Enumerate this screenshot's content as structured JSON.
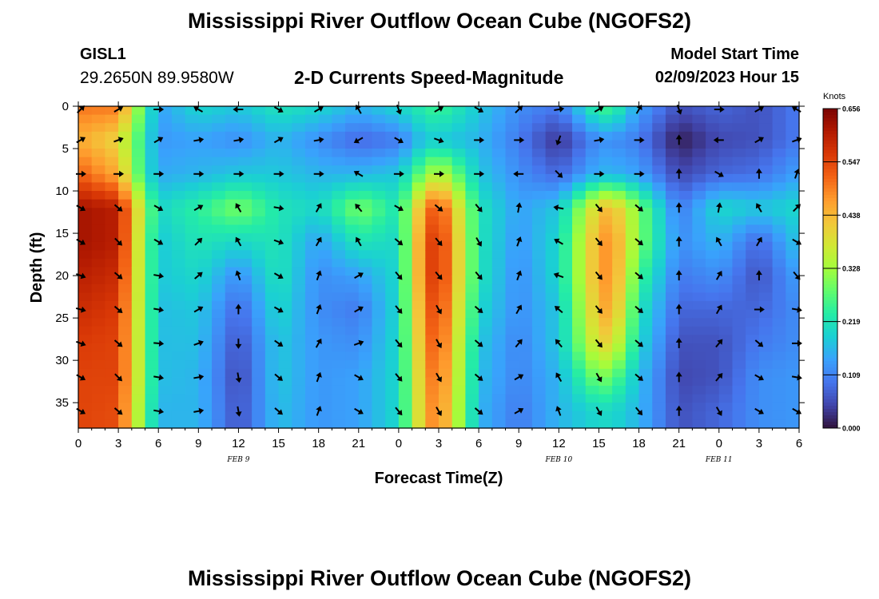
{
  "header": {
    "title": "Mississippi River Outflow Ocean Cube (NGOFS2)",
    "station": "GISL1",
    "coordinates": "29.2650N  89.9580W",
    "product": "2-D Currents Speed-Magnitude",
    "model_start_label": "Model Start Time",
    "model_start_value": "02/09/2023 Hour 15"
  },
  "footer": {
    "title": "Mississippi River Outflow Ocean Cube (NGOFS2)"
  },
  "chart_data": {
    "type": "heatmap",
    "xlabel": "Forecast Time(Z)",
    "ylabel": "Depth (ft)",
    "x_tick_labels": [
      "0",
      "3",
      "6",
      "9",
      "12",
      "15",
      "18",
      "21",
      "0",
      "3",
      "6",
      "9",
      "12",
      "15",
      "18",
      "21",
      "0",
      "3",
      "6"
    ],
    "x_range_hours": [
      0,
      54
    ],
    "date_labels": [
      {
        "label": "FEB 9",
        "hour": 12
      },
      {
        "label": "FEB 10",
        "hour": 36
      },
      {
        "label": "FEB 11",
        "hour": 48
      }
    ],
    "y_ticks": [
      0,
      5,
      10,
      15,
      20,
      25,
      30,
      35
    ],
    "y_range": [
      0,
      38
    ],
    "y_inverted": true,
    "colorbar": {
      "unit": "Knots",
      "ticks": [
        "0.656",
        "0.547",
        "0.438",
        "0.328",
        "0.219",
        "0.109",
        "0.000"
      ],
      "min": 0,
      "max": 0.656,
      "colors": [
        "#30123b",
        "#4145ab",
        "#4675ed",
        "#39a2fc",
        "#1bcfd4",
        "#24eca6",
        "#61fc6c",
        "#a4fc3b",
        "#d1e834",
        "#f3c63a",
        "#fe9b2d",
        "#f36315",
        "#d93806",
        "#b11901",
        "#7a0402"
      ]
    },
    "arrow_times": [
      0,
      3,
      6,
      9,
      12,
      15,
      18,
      21,
      24,
      27,
      30,
      33,
      36,
      39,
      42,
      45,
      48,
      51,
      54
    ],
    "arrow_depths": [
      0,
      4,
      8,
      12,
      16,
      20,
      24,
      28,
      32,
      36
    ],
    "speed_profiles": [
      {
        "t": 0,
        "speeds": [
          0.5,
          0.45,
          0.52,
          0.62,
          0.62,
          0.6,
          0.58,
          0.56,
          0.55,
          0.55
        ]
      },
      {
        "t": 3,
        "speeds": [
          0.5,
          0.4,
          0.45,
          0.6,
          0.6,
          0.58,
          0.56,
          0.55,
          0.55,
          0.54
        ]
      },
      {
        "t": 5,
        "speeds": [
          0.25,
          0.22,
          0.22,
          0.32,
          0.3,
          0.3,
          0.3,
          0.3,
          0.3,
          0.28
        ]
      },
      {
        "t": 6,
        "speeds": [
          0.14,
          0.13,
          0.15,
          0.2,
          0.18,
          0.18,
          0.17,
          0.17,
          0.17,
          0.16
        ]
      },
      {
        "t": 9,
        "speeds": [
          0.2,
          0.14,
          0.16,
          0.24,
          0.22,
          0.2,
          0.18,
          0.17,
          0.16,
          0.16
        ]
      },
      {
        "t": 12,
        "speeds": [
          0.18,
          0.12,
          0.18,
          0.3,
          0.2,
          0.12,
          0.08,
          0.06,
          0.05,
          0.06
        ]
      },
      {
        "t": 15,
        "speeds": [
          0.22,
          0.16,
          0.18,
          0.22,
          0.22,
          0.22,
          0.2,
          0.18,
          0.18,
          0.17
        ]
      },
      {
        "t": 18,
        "speeds": [
          0.2,
          0.12,
          0.16,
          0.2,
          0.14,
          0.12,
          0.12,
          0.13,
          0.13,
          0.13
        ]
      },
      {
        "t": 21,
        "speeds": [
          0.16,
          0.08,
          0.16,
          0.3,
          0.22,
          0.14,
          0.1,
          0.12,
          0.14,
          0.14
        ]
      },
      {
        "t": 24,
        "speeds": [
          0.2,
          0.1,
          0.18,
          0.22,
          0.2,
          0.2,
          0.2,
          0.2,
          0.2,
          0.2
        ]
      },
      {
        "t": 26,
        "speeds": [
          0.24,
          0.18,
          0.3,
          0.48,
          0.52,
          0.52,
          0.5,
          0.48,
          0.46,
          0.45
        ]
      },
      {
        "t": 27,
        "speeds": [
          0.26,
          0.18,
          0.36,
          0.55,
          0.58,
          0.58,
          0.56,
          0.54,
          0.52,
          0.5
        ]
      },
      {
        "t": 30,
        "speeds": [
          0.18,
          0.16,
          0.18,
          0.22,
          0.22,
          0.22,
          0.2,
          0.18,
          0.17,
          0.16
        ]
      },
      {
        "t": 33,
        "speeds": [
          0.12,
          0.1,
          0.12,
          0.14,
          0.13,
          0.12,
          0.12,
          0.11,
          0.11,
          0.1
        ]
      },
      {
        "t": 36,
        "speeds": [
          0.1,
          0.03,
          0.08,
          0.18,
          0.2,
          0.2,
          0.18,
          0.18,
          0.16,
          0.16
        ]
      },
      {
        "t": 39,
        "speeds": [
          0.26,
          0.12,
          0.16,
          0.42,
          0.46,
          0.46,
          0.44,
          0.4,
          0.3,
          0.2
        ]
      },
      {
        "t": 40,
        "speeds": [
          0.26,
          0.12,
          0.16,
          0.44,
          0.48,
          0.48,
          0.46,
          0.4,
          0.28,
          0.2
        ]
      },
      {
        "t": 42,
        "speeds": [
          0.14,
          0.1,
          0.14,
          0.3,
          0.3,
          0.26,
          0.22,
          0.2,
          0.17,
          0.16
        ]
      },
      {
        "t": 45,
        "speeds": [
          0.06,
          0.01,
          0.05,
          0.1,
          0.12,
          0.1,
          0.08,
          0.06,
          0.05,
          0.06
        ]
      },
      {
        "t": 48,
        "speeds": [
          0.08,
          0.05,
          0.08,
          0.2,
          0.16,
          0.12,
          0.08,
          0.06,
          0.06,
          0.08
        ]
      },
      {
        "t": 51,
        "speeds": [
          0.06,
          0.06,
          0.09,
          0.18,
          0.08,
          0.06,
          0.08,
          0.1,
          0.12,
          0.12
        ]
      },
      {
        "t": 54,
        "speeds": [
          0.1,
          0.1,
          0.14,
          0.2,
          0.18,
          0.14,
          0.12,
          0.12,
          0.13,
          0.13
        ]
      }
    ],
    "direction_columns_deg": [
      {
        "t": 0,
        "dirs": [
          45,
          60,
          90,
          120,
          120,
          110,
          105,
          110,
          120,
          120
        ]
      },
      {
        "t": 3,
        "dirs": [
          60,
          70,
          90,
          130,
          135,
          130,
          130,
          130,
          135,
          130
        ]
      },
      {
        "t": 6,
        "dirs": [
          90,
          60,
          90,
          120,
          120,
          100,
          100,
          95,
          100,
          100
        ]
      },
      {
        "t": 9,
        "dirs": [
          300,
          80,
          90,
          60,
          45,
          50,
          60,
          70,
          80,
          80
        ]
      },
      {
        "t": 12,
        "dirs": [
          270,
          80,
          90,
          330,
          330,
          340,
          0,
          180,
          170,
          170
        ]
      },
      {
        "t": 15,
        "dirs": [
          120,
          60,
          90,
          100,
          110,
          120,
          120,
          125,
          130,
          130
        ]
      },
      {
        "t": 18,
        "dirs": [
          60,
          80,
          90,
          30,
          30,
          20,
          20,
          30,
          20,
          20
        ]
      },
      {
        "t": 21,
        "dirs": [
          330,
          240,
          300,
          320,
          330,
          60,
          60,
          70,
          120,
          120
        ]
      },
      {
        "t": 24,
        "dirs": [
          160,
          120,
          90,
          120,
          130,
          140,
          140,
          140,
          140,
          140
        ]
      },
      {
        "t": 27,
        "dirs": [
          60,
          110,
          90,
          130,
          140,
          140,
          150,
          150,
          150,
          150
        ]
      },
      {
        "t": 30,
        "dirs": [
          120,
          90,
          90,
          140,
          150,
          140,
          130,
          130,
          130,
          130
        ]
      },
      {
        "t": 33,
        "dirs": [
          45,
          90,
          270,
          10,
          20,
          20,
          30,
          40,
          60,
          60
        ]
      },
      {
        "t": 36,
        "dirs": [
          80,
          200,
          135,
          280,
          300,
          290,
          310,
          320,
          330,
          340
        ]
      },
      {
        "t": 39,
        "dirs": [
          60,
          80,
          90,
          140,
          140,
          140,
          140,
          140,
          150,
          150
        ]
      },
      {
        "t": 42,
        "dirs": [
          30,
          90,
          90,
          130,
          130,
          130,
          130,
          130,
          130,
          140
        ]
      },
      {
        "t": 45,
        "dirs": [
          160,
          0,
          0,
          0,
          0,
          0,
          0,
          0,
          0,
          0
        ]
      },
      {
        "t": 48,
        "dirs": [
          90,
          270,
          120,
          10,
          330,
          30,
          30,
          40,
          40,
          150
        ]
      },
      {
        "t": 51,
        "dirs": [
          60,
          60,
          0,
          330,
          30,
          0,
          90,
          130,
          120,
          120
        ]
      },
      {
        "t": 54,
        "dirs": [
          300,
          70,
          20,
          45,
          120,
          140,
          100,
          90,
          100,
          120
        ]
      }
    ]
  }
}
